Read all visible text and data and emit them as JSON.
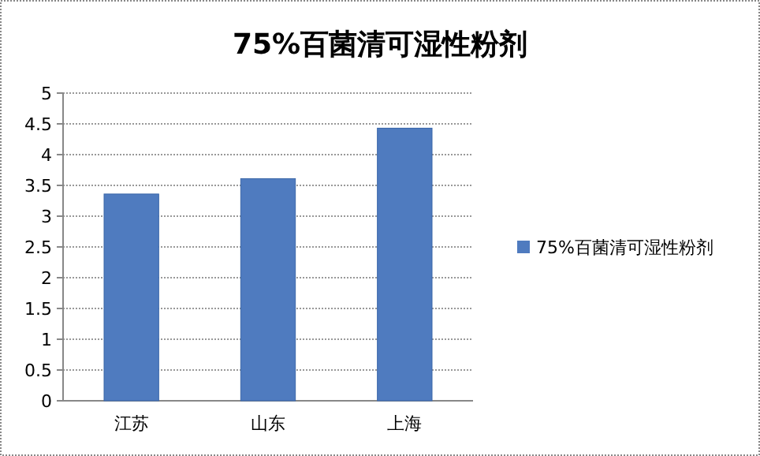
{
  "chart_data": {
    "type": "bar",
    "title": "75%百菌清可湿性粉剂",
    "categories": [
      "江苏",
      "山东",
      "上海"
    ],
    "series": [
      {
        "name": "75%百菌清可湿性粉剂",
        "color": "#4f7bbf",
        "values": [
          3.36,
          3.61,
          4.43
        ]
      }
    ],
    "ylim": [
      0,
      5
    ],
    "yticks": [
      0,
      0.5,
      1,
      1.5,
      2,
      2.5,
      3,
      3.5,
      4,
      4.5,
      5
    ],
    "grid": "y",
    "legend": "right"
  }
}
